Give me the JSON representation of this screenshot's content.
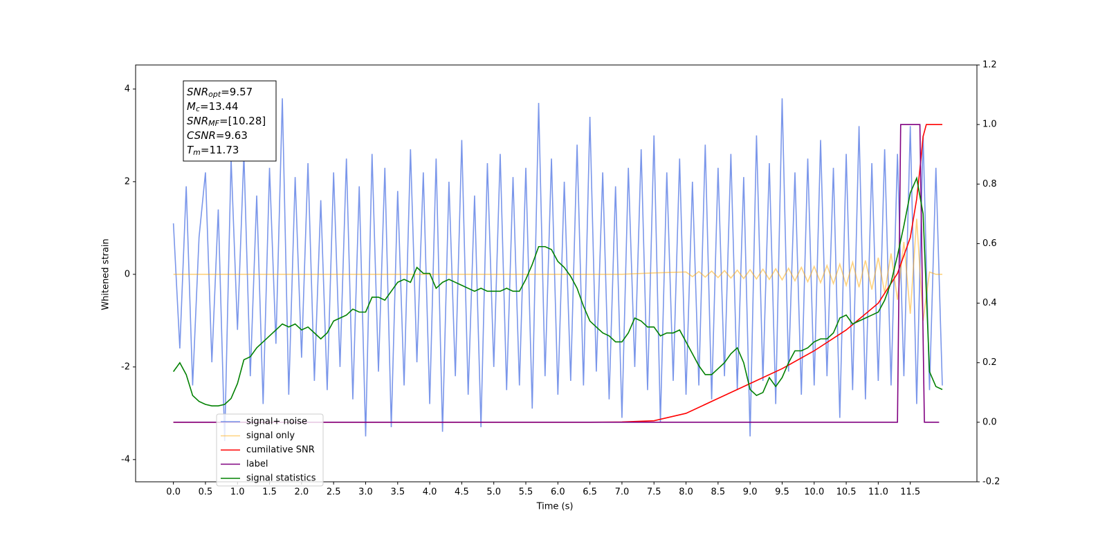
{
  "chart_data": {
    "type": "line",
    "xlabel": "Time (s)",
    "ylabel": "Whitened strain",
    "xlim": [
      -0.59,
      12.54
    ],
    "ylim": [
      -4.48,
      4.52
    ],
    "y2lim": [
      -0.2,
      1.2
    ],
    "xticks": [
      {
        "value": 0,
        "label": "0.0"
      },
      0.5,
      {
        "value": 1,
        "label": "1.0"
      },
      1.5,
      {
        "value": 2,
        "label": "2.0"
      },
      2.5,
      {
        "value": 3,
        "label": "3.0"
      },
      3.5,
      {
        "value": 4,
        "label": "4.0"
      },
      4.5,
      {
        "value": 5,
        "label": "5.0"
      },
      5.5,
      {
        "value": 6,
        "label": "6.0"
      },
      6.5,
      {
        "value": 7,
        "label": "7.0"
      },
      7.5,
      {
        "value": 8,
        "label": "8.0"
      },
      8.5,
      {
        "value": 9,
        "label": "9.0"
      },
      9.5,
      {
        "value": 10,
        "label": "10.0"
      },
      10.5,
      {
        "value": 11,
        "label": "11.0"
      },
      11.5
    ],
    "yticks": [
      -4,
      -2,
      0,
      2,
      4
    ],
    "y2ticks": [
      -0.2,
      {
        "value": 0,
        "label": "0.0"
      },
      0.2,
      0.4,
      0.6,
      0.8,
      {
        "value": 1,
        "label": "1.0"
      },
      1.2
    ],
    "legend": "lower left",
    "annotation": [
      {
        "text": "SNR",
        "sub": "opt",
        "rest": "=9.57"
      },
      {
        "text": "M",
        "sub": "c",
        "rest": "=13.44"
      },
      {
        "text": "SNR",
        "sub": "MF",
        "rest": "=[10.28]"
      },
      {
        "text": "CSNR",
        "rest": "=9.63"
      },
      {
        "text": "T",
        "sub": "m",
        "rest": "=11.73"
      }
    ],
    "x": [
      0,
      0.1,
      0.2,
      0.3,
      0.4,
      0.5,
      0.6,
      0.7,
      0.8,
      0.9,
      1.0,
      1.1,
      1.2,
      1.3,
      1.4,
      1.5,
      1.6,
      1.7,
      1.8,
      1.9,
      2.0,
      2.1,
      2.2,
      2.3,
      2.4,
      2.5,
      2.6,
      2.7,
      2.8,
      2.9,
      3.0,
      3.1,
      3.2,
      3.3,
      3.4,
      3.5,
      3.6,
      3.7,
      3.8,
      3.9,
      4.0,
      4.1,
      4.2,
      4.3,
      4.4,
      4.5,
      4.6,
      4.7,
      4.8,
      4.9,
      5.0,
      5.1,
      5.2,
      5.3,
      5.4,
      5.5,
      5.6,
      5.7,
      5.8,
      5.9,
      6.0,
      6.1,
      6.2,
      6.3,
      6.4,
      6.5,
      6.6,
      6.7,
      6.8,
      6.9,
      7.0,
      7.1,
      7.2,
      7.3,
      7.4,
      7.5,
      7.6,
      7.7,
      7.8,
      7.9,
      8.0,
      8.1,
      8.2,
      8.3,
      8.4,
      8.5,
      8.6,
      8.7,
      8.8,
      8.9,
      9.0,
      9.1,
      9.2,
      9.3,
      9.4,
      9.5,
      9.6,
      9.7,
      9.8,
      9.9,
      10.0,
      10.1,
      10.2,
      10.3,
      10.4,
      10.5,
      10.6,
      10.7,
      10.8,
      10.9,
      11.0,
      11.1,
      11.2,
      11.3,
      11.4,
      11.5,
      11.6,
      11.7,
      11.8,
      11.9,
      12.0
    ],
    "series": [
      {
        "name": "signal+ noise",
        "color": "#4169e1",
        "opacity": 0.7,
        "values": [
          1.1,
          -1.6,
          1.9,
          -2.4,
          0.8,
          2.2,
          -1.9,
          1.4,
          -3.6,
          2.5,
          -1.2,
          2.6,
          -2.2,
          1.7,
          -2.8,
          2.3,
          -1.5,
          3.8,
          -2.6,
          2.1,
          -1.8,
          2.4,
          -2.3,
          1.6,
          -2.5,
          2.2,
          -2.0,
          2.5,
          -2.7,
          1.9,
          -3.5,
          2.6,
          -2.1,
          2.3,
          -3.3,
          1.8,
          -2.4,
          2.7,
          -1.9,
          2.2,
          -2.8,
          2.5,
          -3.4,
          2.0,
          -2.2,
          2.9,
          -2.6,
          1.7,
          -3.3,
          2.4,
          -2.0,
          2.6,
          -2.5,
          2.1,
          -2.4,
          2.3,
          -2.9,
          3.7,
          -2.2,
          2.5,
          -2.6,
          2.0,
          -2.3,
          2.8,
          -2.4,
          3.4,
          -2.1,
          2.2,
          -2.7,
          1.9,
          -3.1,
          2.3,
          -2.0,
          2.7,
          -2.5,
          3.0,
          -3.2,
          2.2,
          -2.3,
          2.5,
          -2.6,
          2.0,
          -2.4,
          2.8,
          -2.7,
          2.3,
          -2.2,
          2.6,
          -2.5,
          2.1,
          -3.5,
          3.0,
          -2.3,
          2.4,
          -2.8,
          3.8,
          -2.1,
          2.2,
          -2.6,
          2.5,
          -2.4,
          2.9,
          -2.2,
          2.3,
          -3.1,
          2.6,
          -2.5,
          3.2,
          -2.7,
          2.4,
          -2.3,
          2.7,
          -2.4,
          2.6,
          -2.2,
          3.2,
          -2.8,
          3.0,
          -2.5,
          2.3,
          -2.4
        ]
      },
      {
        "name": "signal only",
        "color": "#ffa500",
        "opacity": 0.5,
        "x": [
          0,
          7.0,
          7.5,
          8.0,
          8.1,
          8.2,
          8.3,
          8.4,
          8.5,
          8.6,
          8.7,
          8.8,
          8.9,
          9.0,
          9.1,
          9.2,
          9.3,
          9.4,
          9.5,
          9.6,
          9.7,
          9.8,
          9.9,
          10.0,
          10.1,
          10.2,
          10.3,
          10.4,
          10.5,
          10.6,
          10.7,
          10.8,
          10.9,
          11.0,
          11.1,
          11.2,
          11.3,
          11.4,
          11.5,
          11.6,
          11.7,
          11.8,
          11.9,
          12.0
        ],
        "values": [
          0,
          0,
          0.03,
          0.05,
          -0.05,
          0.06,
          -0.06,
          0.07,
          -0.07,
          0.08,
          -0.08,
          0.09,
          -0.09,
          0.1,
          -0.1,
          0.11,
          -0.11,
          0.12,
          -0.12,
          0.13,
          -0.14,
          0.15,
          -0.16,
          0.17,
          -0.18,
          0.19,
          -0.2,
          0.22,
          -0.24,
          0.26,
          -0.28,
          0.3,
          -0.33,
          0.36,
          -0.4,
          0.45,
          -0.55,
          0.7,
          -0.85,
          1.2,
          -1.0,
          0.05,
          0,
          0
        ]
      },
      {
        "name": "cumilative SNR",
        "color": "#ff0000",
        "axis": "y2",
        "x": [
          0,
          6.5,
          7.0,
          7.5,
          8.0,
          8.5,
          9.0,
          9.5,
          10.0,
          10.5,
          11.0,
          11.3,
          11.5,
          11.6,
          11.65,
          11.7,
          11.75,
          12.0
        ],
        "values": [
          0,
          0,
          0.001,
          0.005,
          0.03,
          0.08,
          0.13,
          0.18,
          0.24,
          0.31,
          0.4,
          0.5,
          0.62,
          0.75,
          0.85,
          0.96,
          1.0,
          1.0
        ]
      },
      {
        "name": "label",
        "color": "#800080",
        "axis": "y2",
        "x": [
          0,
          11.3,
          11.35,
          11.65,
          11.72,
          11.95
        ],
        "values": [
          0,
          0,
          1.0,
          1.0,
          0,
          0
        ]
      },
      {
        "name": "signal statistics",
        "color": "#008000",
        "axis": "y2",
        "values": [
          0.17,
          0.2,
          0.16,
          0.09,
          0.07,
          0.06,
          0.055,
          0.055,
          0.06,
          0.08,
          0.13,
          0.21,
          0.22,
          0.25,
          0.27,
          0.29,
          0.31,
          0.33,
          0.32,
          0.33,
          0.31,
          0.32,
          0.3,
          0.28,
          0.3,
          0.34,
          0.35,
          0.36,
          0.38,
          0.37,
          0.37,
          0.42,
          0.42,
          0.41,
          0.44,
          0.47,
          0.48,
          0.47,
          0.52,
          0.5,
          0.5,
          0.45,
          0.47,
          0.48,
          0.47,
          0.46,
          0.45,
          0.44,
          0.45,
          0.44,
          0.44,
          0.44,
          0.45,
          0.44,
          0.44,
          0.48,
          0.53,
          0.59,
          0.59,
          0.58,
          0.54,
          0.52,
          0.49,
          0.45,
          0.39,
          0.34,
          0.32,
          0.3,
          0.29,
          0.27,
          0.27,
          0.3,
          0.35,
          0.34,
          0.32,
          0.32,
          0.29,
          0.3,
          0.3,
          0.31,
          0.27,
          0.23,
          0.19,
          0.16,
          0.16,
          0.18,
          0.2,
          0.23,
          0.25,
          0.2,
          0.11,
          0.09,
          0.1,
          0.15,
          0.12,
          0.15,
          0.2,
          0.24,
          0.24,
          0.25,
          0.27,
          0.28,
          0.28,
          0.3,
          0.35,
          0.36,
          0.33,
          0.34,
          0.35,
          0.36,
          0.37,
          0.41,
          0.47,
          0.56,
          0.66,
          0.77,
          0.82,
          0.7,
          0.17,
          0.12,
          0.11
        ]
      }
    ]
  }
}
